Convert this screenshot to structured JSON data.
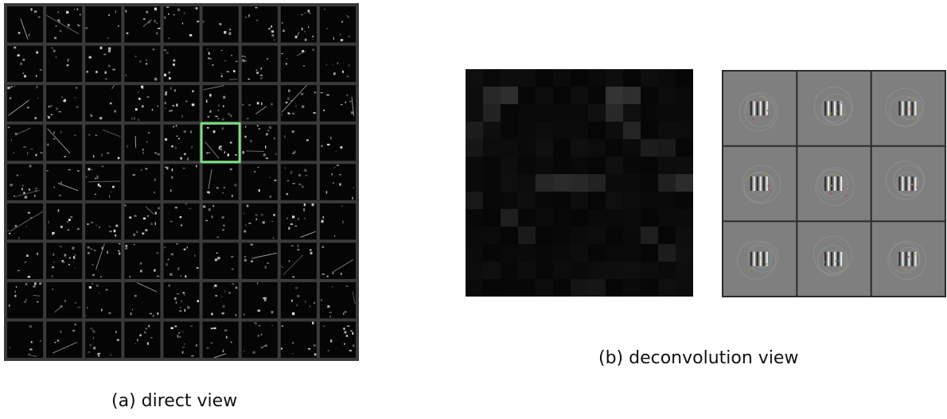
{
  "figure": {
    "panel_a": {
      "caption": "(a) direct view",
      "grid_rows": 9,
      "grid_cols": 9,
      "highlighted_cell": {
        "row": 3,
        "col": 5
      },
      "highlight_color": "#7de07d"
    },
    "panel_b": {
      "caption": "(b) deconvolution view",
      "activation_map_cells": 13,
      "deconv_grid_rows": 3,
      "deconv_grid_cols": 3
    }
  }
}
